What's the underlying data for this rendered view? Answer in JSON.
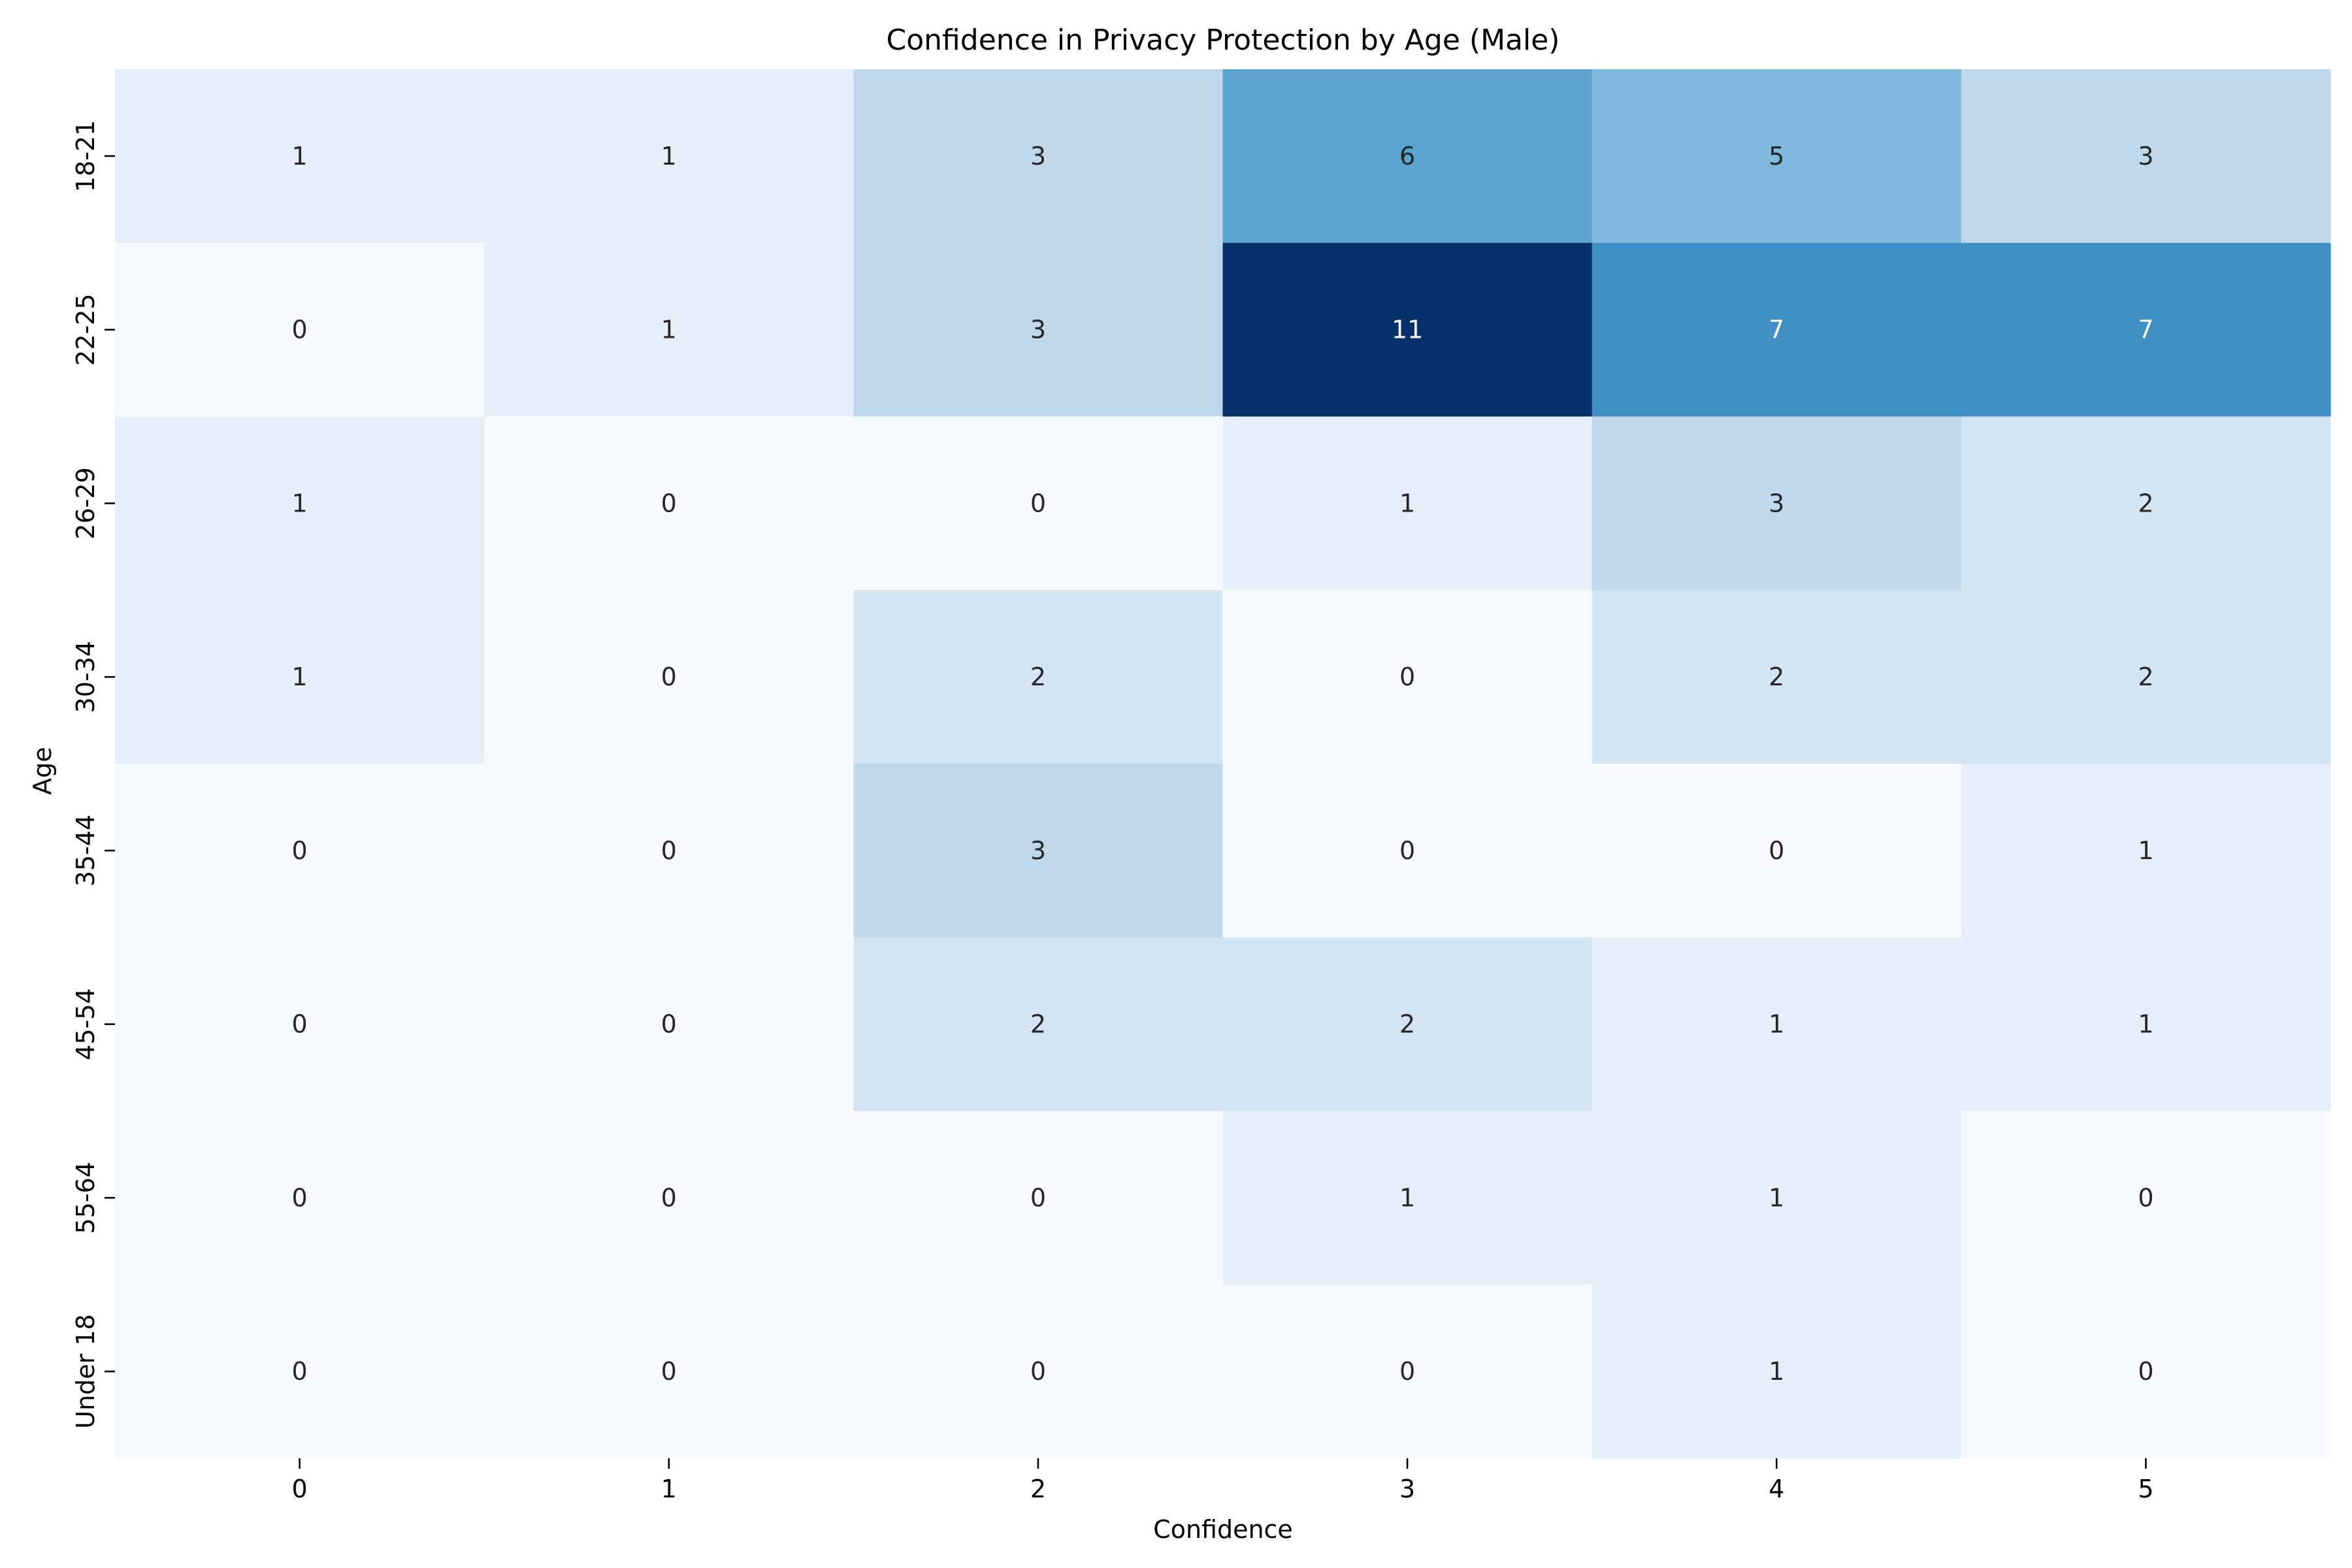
{
  "chart_data": {
    "type": "heatmap",
    "title": "Confidence in Privacy Protection by Age (Male)",
    "xlabel": "Confidence",
    "ylabel": "Age",
    "x_categories": [
      "0",
      "1",
      "2",
      "3",
      "4",
      "5"
    ],
    "y_categories": [
      "18-21",
      "22-25",
      "26-29",
      "30-34",
      "35-44",
      "45-54",
      "55-64",
      "Under 18"
    ],
    "values": [
      [
        1,
        1,
        3,
        6,
        5,
        3
      ],
      [
        0,
        1,
        3,
        11,
        7,
        7
      ],
      [
        1,
        0,
        0,
        1,
        3,
        2
      ],
      [
        1,
        0,
        2,
        0,
        2,
        2
      ],
      [
        0,
        0,
        3,
        0,
        0,
        1
      ],
      [
        0,
        0,
        2,
        2,
        1,
        1
      ],
      [
        0,
        0,
        0,
        1,
        1,
        0
      ],
      [
        0,
        0,
        0,
        0,
        1,
        0
      ]
    ],
    "value_range": [
      0,
      11
    ],
    "colormap": "Blues",
    "annotate": true,
    "colorbar": false
  }
}
